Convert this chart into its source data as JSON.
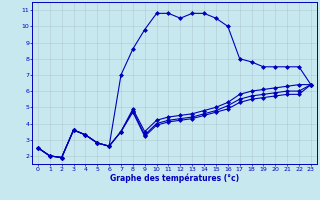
{
  "line1_x": [
    0,
    1,
    2,
    3,
    4,
    5,
    6,
    7,
    8,
    9,
    10,
    11,
    12,
    13,
    14,
    15,
    16,
    17,
    18,
    19,
    20,
    21,
    22,
    23
  ],
  "line1_y": [
    2.5,
    2.0,
    1.9,
    3.6,
    3.3,
    2.8,
    2.6,
    7.0,
    8.6,
    9.8,
    10.8,
    10.8,
    10.5,
    10.8,
    10.8,
    10.5,
    10.0,
    8.0,
    7.8,
    7.5,
    7.5,
    7.5,
    7.5,
    6.4
  ],
  "line2_x": [
    0,
    1,
    2,
    3,
    4,
    5,
    6,
    7,
    8,
    9,
    10,
    11,
    12,
    13,
    14,
    15,
    16,
    17,
    18,
    19,
    20,
    21,
    22,
    23
  ],
  "line2_y": [
    2.5,
    2.0,
    1.9,
    3.6,
    3.3,
    2.8,
    2.6,
    3.5,
    4.9,
    3.5,
    4.2,
    4.4,
    4.5,
    4.6,
    4.8,
    5.0,
    5.3,
    5.8,
    6.0,
    6.1,
    6.2,
    6.3,
    6.4,
    6.4
  ],
  "line3_x": [
    0,
    1,
    2,
    3,
    4,
    5,
    6,
    7,
    8,
    9,
    10,
    11,
    12,
    13,
    14,
    15,
    16,
    17,
    18,
    19,
    20,
    21,
    22,
    23
  ],
  "line3_y": [
    2.5,
    2.0,
    1.9,
    3.6,
    3.3,
    2.8,
    2.6,
    3.5,
    4.8,
    3.3,
    4.0,
    4.2,
    4.3,
    4.4,
    4.6,
    4.8,
    5.1,
    5.5,
    5.7,
    5.8,
    5.9,
    6.0,
    6.0,
    6.4
  ],
  "line4_x": [
    0,
    1,
    2,
    3,
    4,
    5,
    6,
    7,
    8,
    9,
    10,
    11,
    12,
    13,
    14,
    15,
    16,
    17,
    18,
    19,
    20,
    21,
    22,
    23
  ],
  "line4_y": [
    2.5,
    2.0,
    1.9,
    3.6,
    3.3,
    2.8,
    2.6,
    3.5,
    4.7,
    3.2,
    3.9,
    4.1,
    4.2,
    4.3,
    4.5,
    4.7,
    4.9,
    5.3,
    5.5,
    5.6,
    5.7,
    5.8,
    5.8,
    6.4
  ],
  "bg_color": "#c8e8f0",
  "grid_color": "#b0c8d0",
  "line_color": "#0000bb",
  "xlabel": "Graphe des températures (°c)",
  "ylim": [
    1.5,
    11.5
  ],
  "xlim": [
    -0.5,
    23.5
  ],
  "yticks": [
    2,
    3,
    4,
    5,
    6,
    7,
    8,
    9,
    10,
    11
  ],
  "xticks": [
    0,
    1,
    2,
    3,
    4,
    5,
    6,
    7,
    8,
    9,
    10,
    11,
    12,
    13,
    14,
    15,
    16,
    17,
    18,
    19,
    20,
    21,
    22,
    23
  ]
}
